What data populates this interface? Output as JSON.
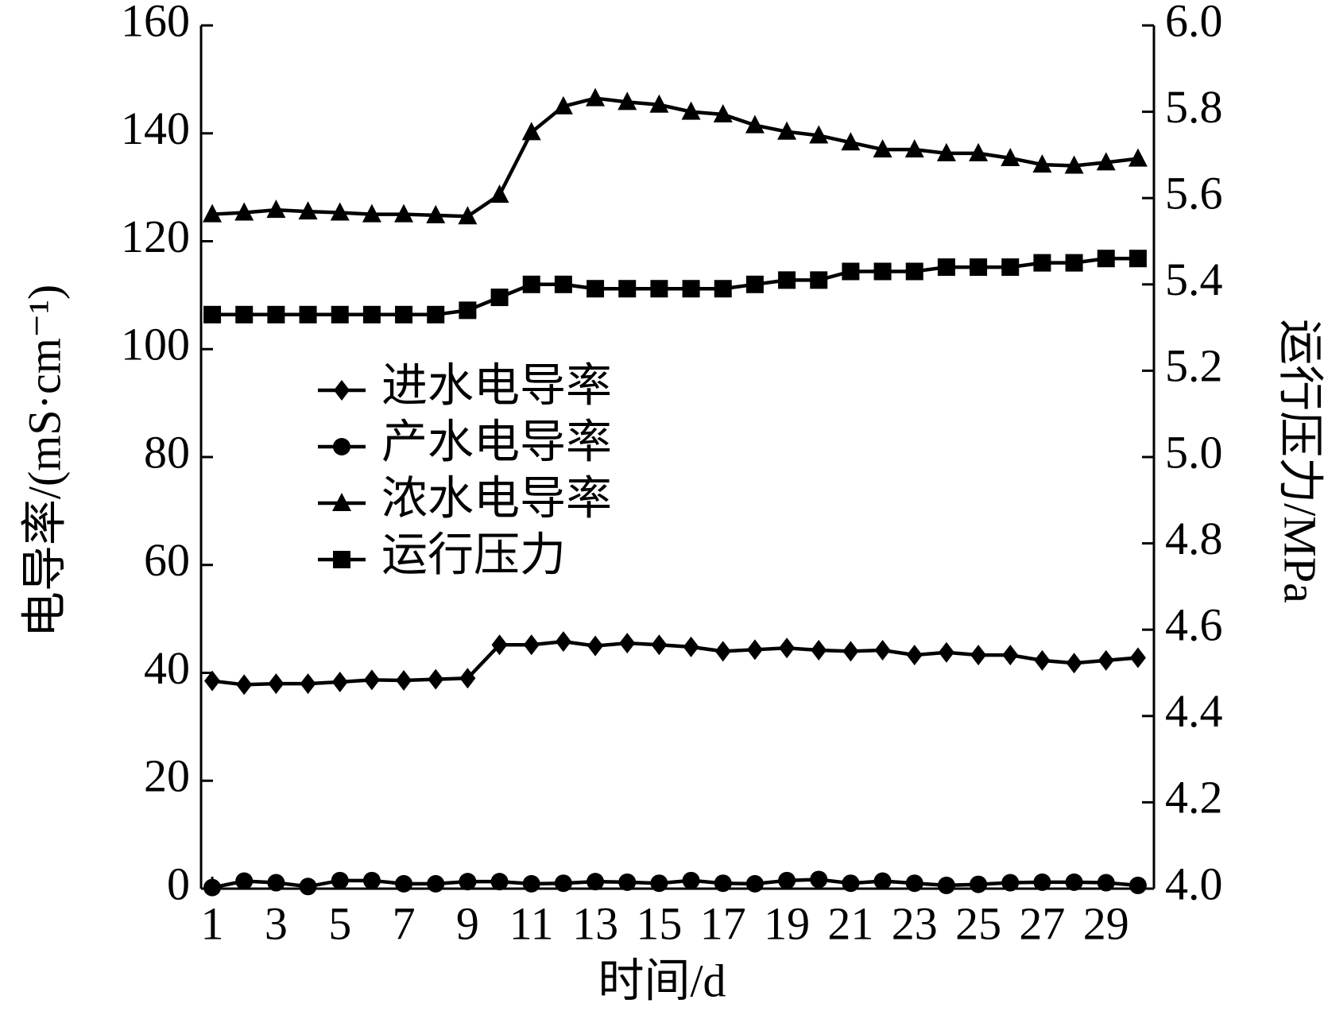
{
  "chart_data": {
    "type": "line",
    "x_label": "时间/d",
    "y_label": "电导率/(mS·cm⁻¹)",
    "y2_label": "运行压力/MPa",
    "x": [
      1,
      2,
      3,
      4,
      5,
      6,
      7,
      8,
      9,
      10,
      11,
      12,
      13,
      14,
      15,
      16,
      17,
      18,
      19,
      20,
      21,
      22,
      23,
      24,
      25,
      26,
      27,
      28,
      29,
      30
    ],
    "xlim": [
      0.65,
      30.5
    ],
    "xticks": [
      1,
      3,
      5,
      7,
      9,
      11,
      13,
      15,
      17,
      19,
      21,
      23,
      25,
      27,
      29
    ],
    "ylim": [
      0,
      160
    ],
    "yticks": [
      0,
      20,
      40,
      60,
      80,
      100,
      120,
      140,
      160
    ],
    "y2lim": [
      4,
      6
    ],
    "y2ticks": [
      {
        "value": 4,
        "label": "4.0"
      },
      4.2,
      4.4,
      4.6,
      4.8,
      {
        "value": 5,
        "label": "5.0"
      },
      5.2,
      5.4,
      5.6,
      5.8,
      {
        "value": 6,
        "label": "6.0"
      }
    ],
    "legend": "center-left",
    "series": [
      {
        "name": "进水电导率",
        "color": "#000000",
        "marker": "diamond",
        "values": [
          38.5,
          37.8,
          38,
          38,
          38.3,
          38.7,
          38.6,
          38.8,
          39,
          45.2,
          45.2,
          45.8,
          45,
          45.5,
          45.2,
          44.8,
          44,
          44.3,
          44.6,
          44.2,
          44,
          44.2,
          43.3,
          43.8,
          43.3,
          43.3,
          42.3,
          41.8,
          42.3,
          42.8
        ]
      },
      {
        "name": "产水电导率",
        "color": "#000000",
        "marker": "circle",
        "values": [
          0.2,
          1.4,
          1.1,
          0.4,
          1.5,
          1.5,
          0.9,
          0.9,
          1.3,
          1.3,
          0.9,
          1.0,
          1.3,
          1.2,
          1.0,
          1.5,
          1.0,
          0.9,
          1.5,
          1.7,
          1.0,
          1.4,
          1.0,
          0.6,
          0.8,
          1.1,
          1.2,
          1.2,
          1.1,
          0.6
        ]
      },
      {
        "name": "浓水电导率",
        "color": "#000000",
        "marker": "triangle",
        "values": [
          125,
          125.3,
          125.8,
          125.5,
          125.3,
          125,
          125,
          124.8,
          124.6,
          128.6,
          140.2,
          145,
          146.5,
          145.8,
          145.3,
          144,
          143.5,
          141.5,
          140.3,
          139.6,
          138.3,
          137,
          137,
          136.3,
          136.3,
          135.4,
          134.2,
          134,
          134.6,
          135.3
        ]
      },
      {
        "name": "运行压力",
        "color": "#000000",
        "marker": "square",
        "axis": "y2",
        "values": [
          5.33,
          5.33,
          5.33,
          5.33,
          5.33,
          5.33,
          5.33,
          5.33,
          5.34,
          5.37,
          5.4,
          5.4,
          5.39,
          5.39,
          5.39,
          5.39,
          5.39,
          5.4,
          5.41,
          5.41,
          5.43,
          5.43,
          5.43,
          5.44,
          5.44,
          5.44,
          5.45,
          5.45,
          5.46,
          5.46
        ]
      }
    ]
  }
}
